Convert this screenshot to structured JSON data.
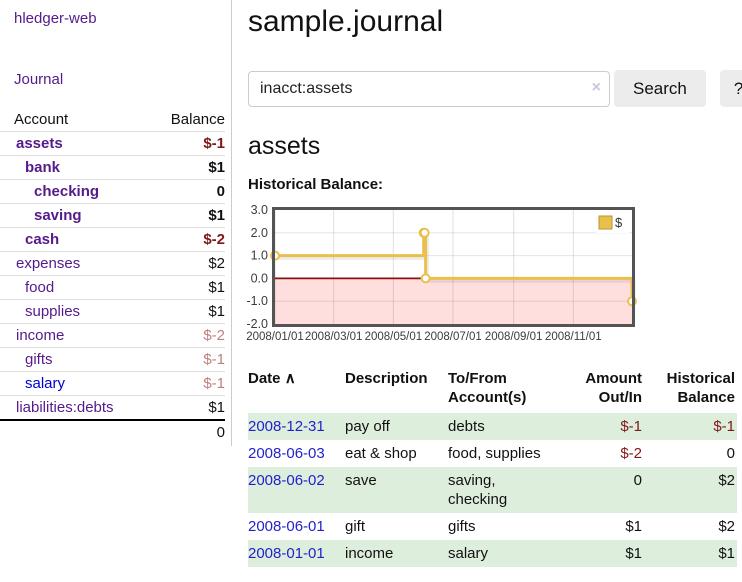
{
  "app": {
    "title": "hledger-web"
  },
  "sidebar": {
    "journal_label": "Journal",
    "table": {
      "headers": {
        "account": "Account",
        "balance": "Balance"
      },
      "rows": [
        {
          "account": "assets",
          "depth": 1,
          "bold": true,
          "blue": false,
          "balance": "$-1",
          "balance_class": "neg-strong"
        },
        {
          "account": "bank",
          "depth": 2,
          "bold": true,
          "blue": false,
          "balance": "$1",
          "balance_class": ""
        },
        {
          "account": "checking",
          "depth": 3,
          "bold": true,
          "blue": false,
          "balance": "0",
          "balance_class": ""
        },
        {
          "account": "saving",
          "depth": 3,
          "bold": true,
          "blue": false,
          "balance": "$1",
          "balance_class": ""
        },
        {
          "account": "cash",
          "depth": 2,
          "bold": true,
          "blue": false,
          "balance": "$-2",
          "balance_class": "neg-strong"
        },
        {
          "account": "expenses",
          "depth": 1,
          "bold": false,
          "blue": false,
          "balance": "$2",
          "balance_class": ""
        },
        {
          "account": "food",
          "depth": 2,
          "bold": false,
          "blue": false,
          "balance": "$1",
          "balance_class": ""
        },
        {
          "account": "supplies",
          "depth": 2,
          "bold": false,
          "blue": false,
          "balance": "$1",
          "balance_class": ""
        },
        {
          "account": "income",
          "depth": 1,
          "bold": false,
          "blue": false,
          "balance": "$-2",
          "balance_class": "neg-soft"
        },
        {
          "account": "gifts",
          "depth": 2,
          "bold": false,
          "blue": false,
          "balance": "$-1",
          "balance_class": "neg-soft"
        },
        {
          "account": "salary",
          "depth": 2,
          "bold": false,
          "blue": true,
          "balance": "$-1",
          "balance_class": "neg-soft"
        },
        {
          "account": "liabilities:debts",
          "depth": 1,
          "bold": false,
          "blue": false,
          "balance": "$1",
          "balance_class": ""
        }
      ],
      "total": "0"
    }
  },
  "header": {
    "title": "sample.journal"
  },
  "search": {
    "value": "inacct:assets",
    "clear_icon": "×",
    "button_label": "Search",
    "help_label": "?"
  },
  "main": {
    "account_title": "assets",
    "chart_label": "Historical Balance:"
  },
  "chart_data": {
    "type": "line",
    "title": "Historical Balance",
    "step": "after",
    "series": [
      {
        "name": "$",
        "x": [
          "2008-01-01",
          "2008-06-01",
          "2008-06-02",
          "2008-06-03",
          "2008-12-31"
        ],
        "values": [
          1,
          2,
          2,
          0,
          -1
        ]
      }
    ],
    "x_range": [
      "2008-01-01",
      "2008-12-31"
    ],
    "x_ticks": [
      "2008/01/01",
      "2008/03/01",
      "2008/05/01",
      "2008/07/01",
      "2008/09/01",
      "2008/11/01"
    ],
    "y_ticks": [
      3.0,
      2.0,
      1.0,
      0.0,
      -1.0,
      -2.0
    ],
    "ylim": [
      -2,
      3
    ],
    "grid": true,
    "legend": {
      "label": "$",
      "position": "top-right"
    },
    "colors": {
      "line": "#e9c04e",
      "marker_fill": "#ffffff",
      "negative_fill": "#ffdede",
      "zero_line": "#8b1010",
      "border": "#545454"
    }
  },
  "register": {
    "headers": {
      "date": "Date",
      "sort_icon": "∧",
      "description": "Description",
      "accounts": "To/From Account(s)",
      "amount": "Amount Out/In",
      "balance": "Historical Balance"
    },
    "rows": [
      {
        "date": "2008-12-31",
        "description": "pay off",
        "accounts": "debts",
        "amount": "$-1",
        "amount_neg": true,
        "balance": "$-1",
        "balance_neg": true
      },
      {
        "date": "2008-06-03",
        "description": "eat & shop",
        "accounts": "food, supplies",
        "amount": "$-2",
        "amount_neg": true,
        "balance": "0",
        "balance_neg": false
      },
      {
        "date": "2008-06-02",
        "description": "save",
        "accounts": "saving, checking",
        "amount": "0",
        "amount_neg": false,
        "balance": "$2",
        "balance_neg": false
      },
      {
        "date": "2008-06-01",
        "description": "gift",
        "accounts": "gifts",
        "amount": "$1",
        "amount_neg": false,
        "balance": "$2",
        "balance_neg": false
      },
      {
        "date": "2008-01-01",
        "description": "income",
        "accounts": "salary",
        "amount": "$1",
        "amount_neg": false,
        "balance": "$1",
        "balance_neg": false
      }
    ]
  }
}
